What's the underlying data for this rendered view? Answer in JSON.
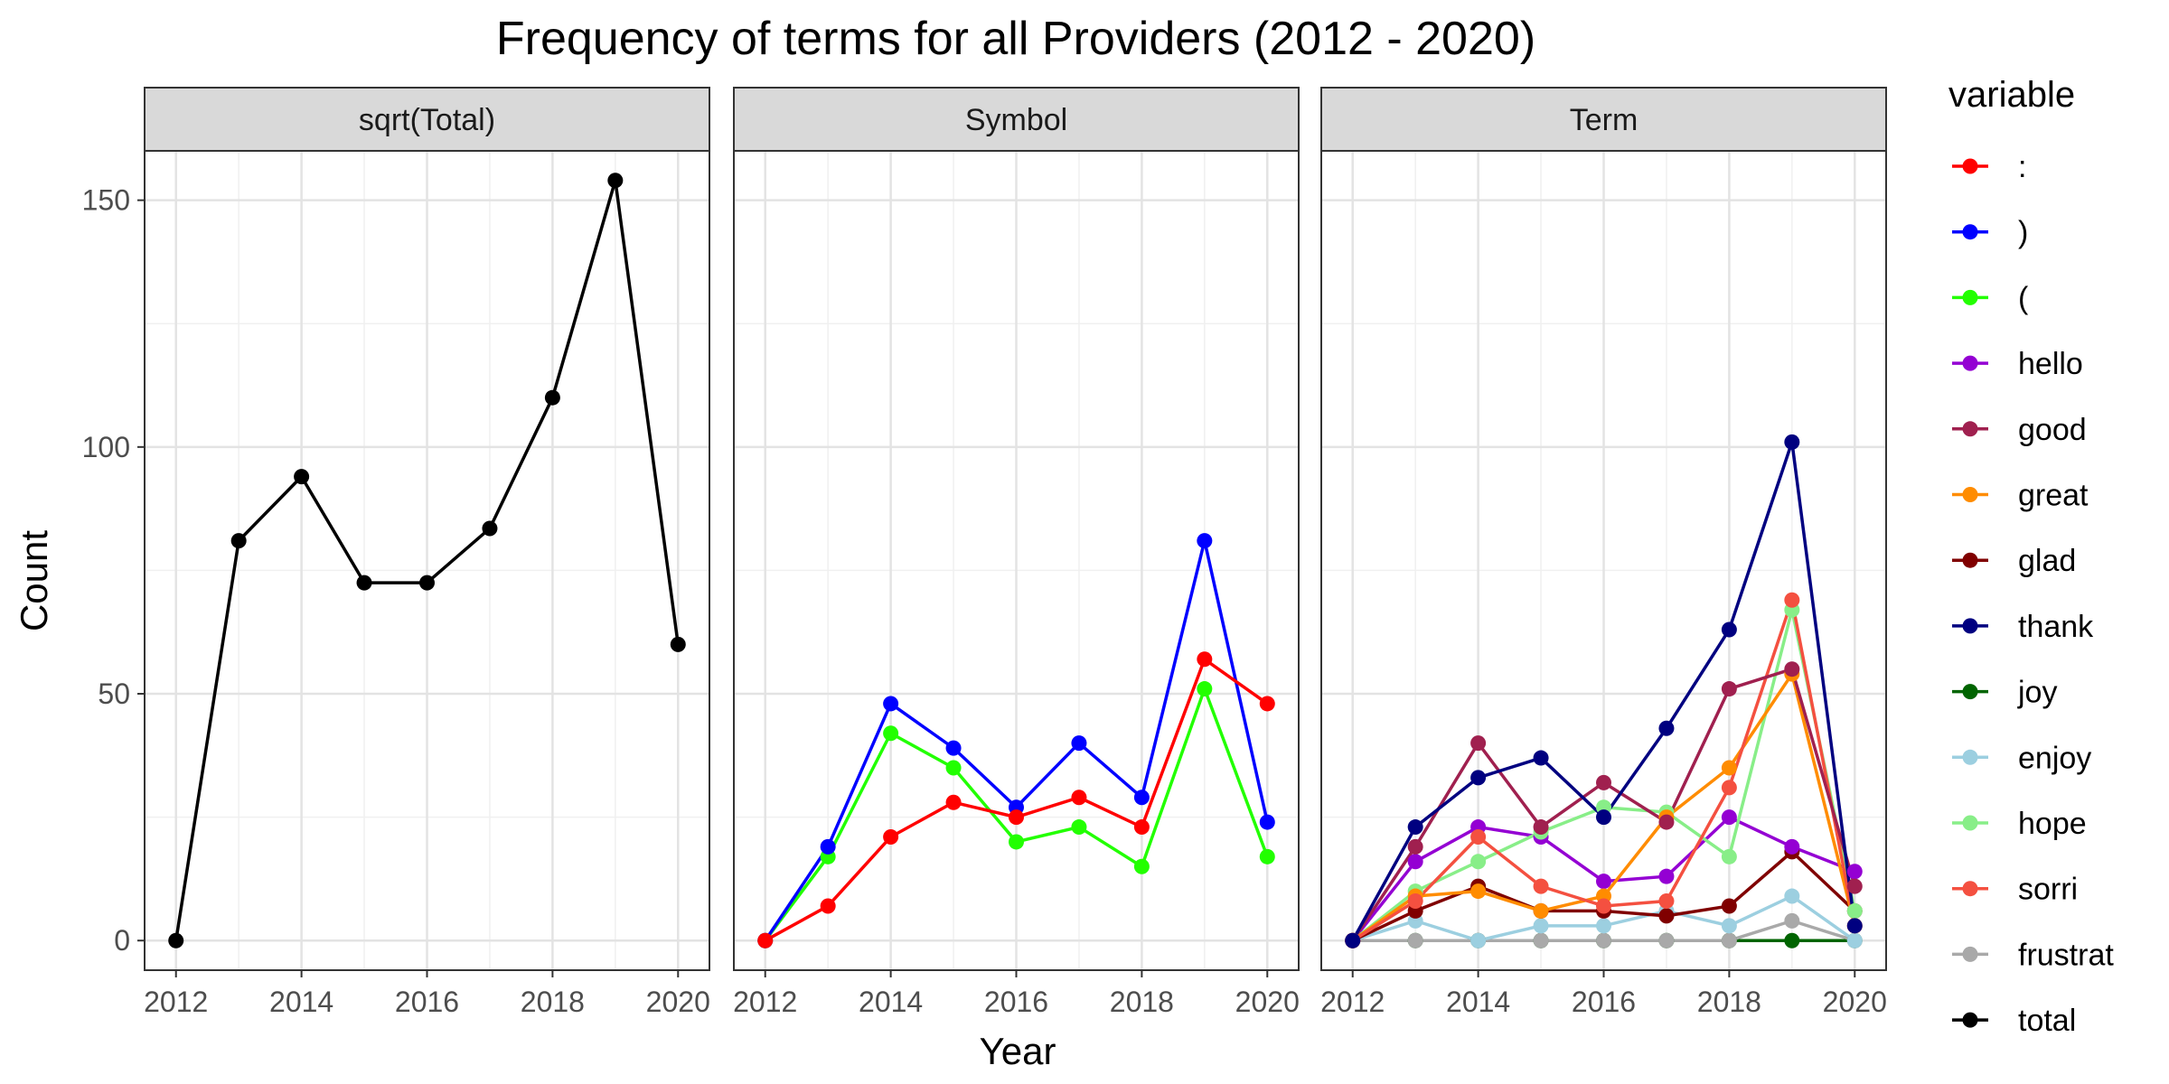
{
  "chart_data": {
    "type": "line",
    "title": "Frequency of terms for all Providers (2012 - 2020)",
    "xlabel": "Year",
    "ylabel": "Count",
    "x": [
      2012,
      2013,
      2014,
      2015,
      2016,
      2017,
      2018,
      2019,
      2020
    ],
    "xticks": [
      "2012",
      "2014",
      "2016",
      "2018",
      "2020"
    ],
    "yticks": [
      "0",
      "50",
      "100",
      "150"
    ],
    "ylim": [
      -6,
      160
    ],
    "grid": true,
    "legend_title": "variable",
    "legend_position": "right",
    "legend": [
      {
        "label": ":",
        "color": "#ff0000"
      },
      {
        "label": ")",
        "color": "#0000ff"
      },
      {
        "label": "(",
        "color": "#22ff00"
      },
      {
        "label": "hello",
        "color": "#9400d3"
      },
      {
        "label": "good",
        "color": "#a0204f"
      },
      {
        "label": "great",
        "color": "#ff8c00"
      },
      {
        "label": "glad",
        "color": "#800000"
      },
      {
        "label": "thank",
        "color": "#000080"
      },
      {
        "label": "joy",
        "color": "#006400"
      },
      {
        "label": "enjoy",
        "color": "#9ccfe0"
      },
      {
        "label": "hope",
        "color": "#88ee88"
      },
      {
        "label": "sorri",
        "color": "#f45040"
      },
      {
        "label": "frustrat",
        "color": "#a9a9a9"
      },
      {
        "label": "total",
        "color": "#000000"
      }
    ],
    "panels": [
      {
        "strip": "sqrt(Total)",
        "series": [
          {
            "name": "total",
            "color": "#000000",
            "values": [
              0,
              81,
              94,
              72.5,
              72.5,
              83.5,
              110,
              154,
              60
            ]
          }
        ]
      },
      {
        "strip": "Symbol",
        "series": [
          {
            "name": "(",
            "color": "#22ff00",
            "values": [
              0,
              17,
              42,
              35,
              20,
              23,
              15,
              51,
              17
            ]
          },
          {
            "name": ")",
            "color": "#0000ff",
            "values": [
              0,
              19,
              48,
              39,
              27,
              40,
              29,
              81,
              24
            ]
          },
          {
            "name": ":",
            "color": "#ff0000",
            "values": [
              0,
              7,
              21,
              28,
              25,
              29,
              23,
              57,
              48
            ]
          }
        ]
      },
      {
        "strip": "Term",
        "series": [
          {
            "name": "joy",
            "color": "#006400",
            "values": [
              0,
              0,
              0,
              0,
              0,
              0,
              0,
              0,
              0
            ]
          },
          {
            "name": "frustrat",
            "color": "#a9a9a9",
            "values": [
              0,
              0,
              0,
              0,
              0,
              0,
              0,
              4,
              0
            ]
          },
          {
            "name": "enjoy",
            "color": "#9ccfe0",
            "values": [
              0,
              4,
              0,
              3,
              3,
              6,
              3,
              9,
              0
            ]
          },
          {
            "name": "glad",
            "color": "#800000",
            "values": [
              0,
              6,
              11,
              6,
              6,
              5,
              7,
              18,
              6
            ]
          },
          {
            "name": "hello",
            "color": "#9400d3",
            "values": [
              0,
              16,
              23,
              21,
              12,
              13,
              25,
              19,
              14
            ]
          },
          {
            "name": "hope",
            "color": "#88ee88",
            "values": [
              0,
              10,
              16,
              22,
              27,
              26,
              17,
              67,
              6
            ]
          },
          {
            "name": "great",
            "color": "#ff8c00",
            "values": [
              0,
              9,
              10,
              6,
              9,
              25,
              35,
              54,
              3
            ]
          },
          {
            "name": "sorri",
            "color": "#f45040",
            "values": [
              0,
              8,
              21,
              11,
              7,
              8,
              31,
              69,
              3
            ]
          },
          {
            "name": "good",
            "color": "#a0204f",
            "values": [
              0,
              19,
              40,
              23,
              32,
              24,
              51,
              55,
              11
            ]
          },
          {
            "name": "thank",
            "color": "#000080",
            "values": [
              0,
              23,
              33,
              37,
              25,
              43,
              63,
              101,
              3
            ]
          }
        ]
      }
    ]
  }
}
